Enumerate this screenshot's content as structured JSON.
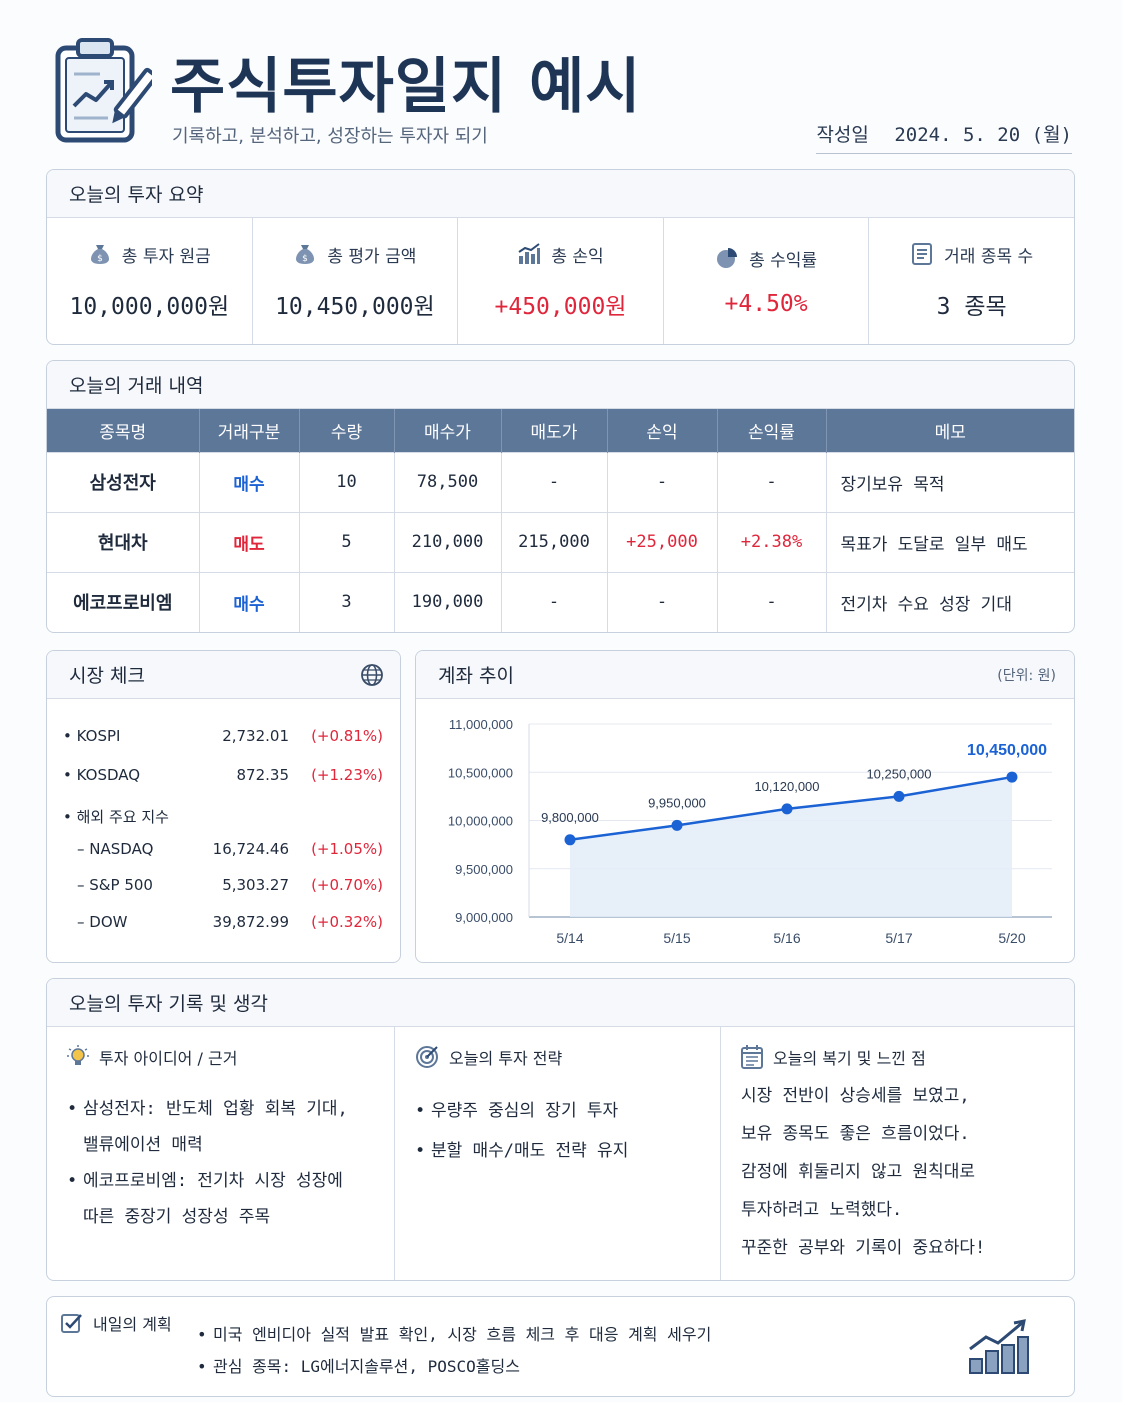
{
  "header": {
    "title": "주식투자일지 예시",
    "subtitle": "기록하고, 분석하고, 성장하는 투자자 되기",
    "date_label": "작성일",
    "date_value": "2024. 5. 20 (월)"
  },
  "summary": {
    "title": "오늘의 투자 요약",
    "items": [
      {
        "label": "총 투자 원금",
        "value": "10,000,000원",
        "icon": "money-bag-icon"
      },
      {
        "label": "총 평가 금액",
        "value": "10,450,000원",
        "icon": "money-bag-icon"
      },
      {
        "label": "총 손익",
        "value": "+450,000원",
        "icon": "bar-chart-icon"
      },
      {
        "label": "총 수익률",
        "value": "+4.50%",
        "icon": "pie-chart-icon"
      },
      {
        "label": "거래 종목 수",
        "value": "3 종목",
        "icon": "list-icon"
      }
    ]
  },
  "trades": {
    "title": "오늘의 거래 내역",
    "columns": [
      "종목명",
      "거래구분",
      "수량",
      "매수가",
      "매도가",
      "손익",
      "손익률",
      "메모"
    ],
    "rows": [
      [
        "삼성전자",
        "매수",
        "10",
        "78,500",
        "-",
        "-",
        "-",
        "장기보유 목적"
      ],
      [
        "현대차",
        "매도",
        "5",
        "210,000",
        "215,000",
        "+25,000",
        "+2.38%",
        "목표가 도달로 일부 매도"
      ],
      [
        "에코프로비엠",
        "매수",
        "3",
        "190,000",
        "-",
        "-",
        "-",
        "전기차 수요 성장 기대"
      ]
    ]
  },
  "market": {
    "title": "시장 체크",
    "domestic": [
      {
        "name": "KOSPI",
        "value": "2,732.01",
        "change": "(+0.81%)"
      },
      {
        "name": "KOSDAQ",
        "value": "872.35",
        "change": "(+1.23%)"
      }
    ],
    "overseas_label": "해외 주요 지수",
    "overseas": [
      {
        "name": "NASDAQ",
        "value": "16,724.46",
        "change": "(+1.05%)"
      },
      {
        "name": "S&P 500",
        "value": "5,303.27",
        "change": "(+0.70%)"
      },
      {
        "name": "DOW",
        "value": "39,872.99",
        "change": "(+0.32%)"
      }
    ]
  },
  "account": {
    "title": "계좌 추이",
    "unit": "(단위: 원)"
  },
  "chart_data": {
    "type": "area",
    "categories": [
      "5/14",
      "5/15",
      "5/16",
      "5/17",
      "5/20"
    ],
    "values": [
      9800000,
      9950000,
      10120000,
      10250000,
      10450000
    ],
    "value_labels": [
      "9,800,000",
      "9,950,000",
      "10,120,000",
      "10,250,000",
      "10,450,000"
    ],
    "yticks": [
      "11,000,000",
      "10,500,000",
      "10,000,000",
      "9,500,000",
      "9,000,000"
    ],
    "ylim": [
      9000000,
      11000000
    ],
    "grid": true,
    "colors": {
      "line": "#1b62d4",
      "fill": "#e3ecf8",
      "last_label": "#1b62d4"
    }
  },
  "reflection": {
    "title": "오늘의 투자 기록 및 생각",
    "idea": {
      "title": "투자 아이디어 / 근거",
      "items": [
        [
          "삼성전자: 반도체 업황 회복 기대,",
          "밸류에이션 매력"
        ],
        [
          "에코프로비엠: 전기차 시장 성장에",
          "따른 중장기 성장성 주목"
        ]
      ]
    },
    "strategy": {
      "title": "오늘의 투자 전략",
      "items": [
        "우량주 중심의 장기 투자",
        "분할 매수/매도 전략 유지"
      ]
    },
    "review": {
      "title": "오늘의 복기 및 느낀 점",
      "lines": [
        "시장 전반이 상승세를 보였고,",
        "보유 종목도 좋은 흐름이었다.",
        "감정에 휘둘리지 않고 원칙대로",
        "투자하려고 노력했다.",
        "꾸준한 공부와 기록이 중요하다!"
      ]
    }
  },
  "tomorrow": {
    "title": "내일의 계획",
    "items": [
      "미국 엔비디아 실적 발표 확인, 시장 흐름 체크 후 대응 계획 세우기",
      "관심 종목: LG에너지솔루션, POSCO홀딩스"
    ]
  },
  "colors": {
    "primary": "#1e3556",
    "header_row": "#5d7799",
    "positive": "#e0263b",
    "buy": "#1b62d4"
  }
}
